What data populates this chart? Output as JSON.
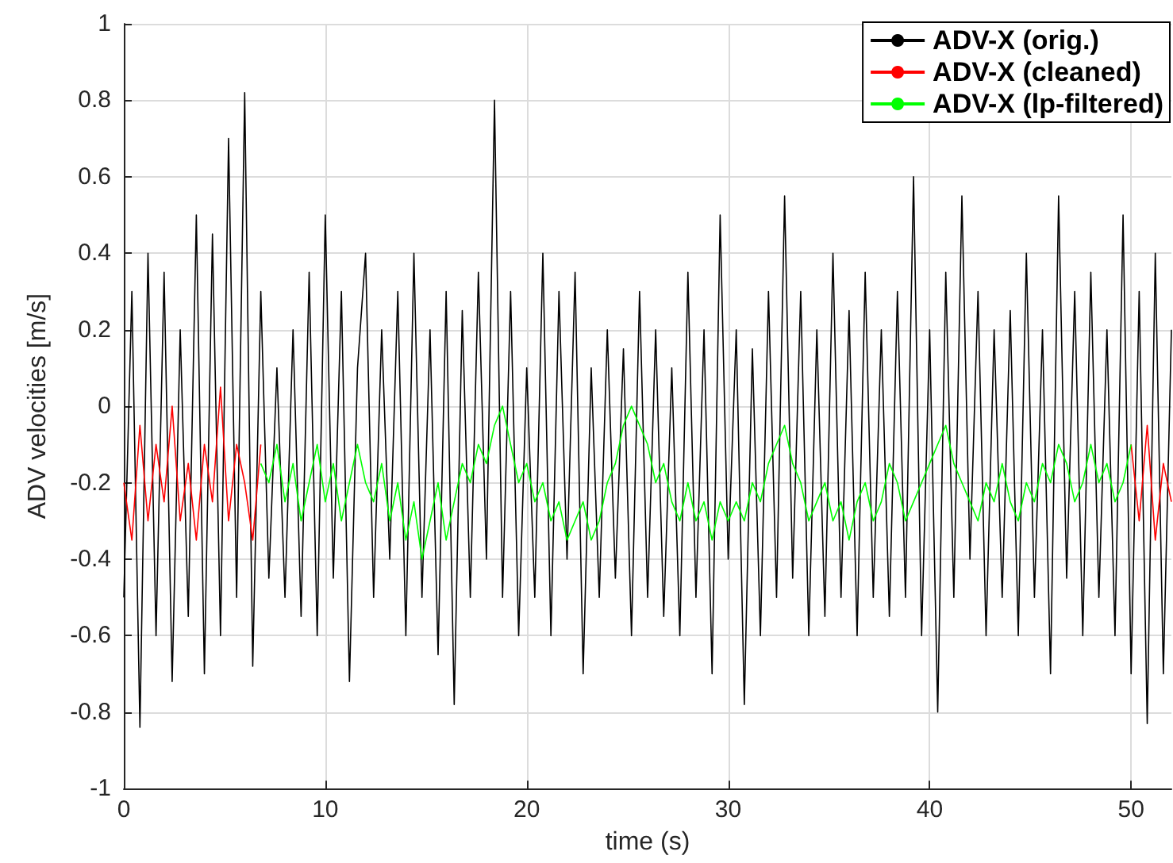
{
  "chart_data": {
    "type": "line",
    "xlabel": "time (s)",
    "ylabel": "ADV velocities [m/s]",
    "x": [
      0,
      0.4,
      0.8,
      1.2,
      1.6,
      2,
      2.4,
      2.8,
      3.2,
      3.6,
      4,
      4.4,
      4.8,
      5.2,
      5.6,
      6,
      6.4,
      6.8,
      7.2,
      7.6,
      8,
      8.4,
      8.8,
      9.2,
      9.6,
      10,
      10.4,
      10.8,
      11.2,
      11.6,
      12,
      12.4,
      12.8,
      13.2,
      13.6,
      14,
      14.4,
      14.8,
      15.2,
      15.6,
      16,
      16.4,
      16.8,
      17.2,
      17.6,
      18,
      18.4,
      18.8,
      19.2,
      19.6,
      20,
      20.4,
      20.8,
      21.2,
      21.6,
      22,
      22.4,
      22.8,
      23.2,
      23.6,
      24,
      24.4,
      24.8,
      25.2,
      25.6,
      26,
      26.4,
      26.8,
      27.2,
      27.6,
      28,
      28.4,
      28.8,
      29.2,
      29.6,
      30,
      30.4,
      30.8,
      31.2,
      31.6,
      32,
      32.4,
      32.8,
      33.2,
      33.6,
      34,
      34.4,
      34.8,
      35.2,
      35.6,
      36,
      36.4,
      36.8,
      37.2,
      37.6,
      38,
      38.4,
      38.8,
      39.2,
      39.6,
      40,
      40.4,
      40.8,
      41.2,
      41.6,
      42,
      42.4,
      42.8,
      43.2,
      43.6,
      44,
      44.4,
      44.8,
      45.2,
      45.6,
      46,
      46.4,
      46.8,
      47.2,
      47.6,
      48,
      48.4,
      48.8,
      49.2,
      49.6,
      50,
      50.4,
      50.8,
      51.2,
      51.6,
      52
    ],
    "series": [
      {
        "name": "ADV-X (orig.)",
        "color": "#000000",
        "values": [
          -0.5,
          0.3,
          -0.84,
          0.4,
          -0.6,
          0.35,
          -0.72,
          0.2,
          -0.55,
          0.5,
          -0.7,
          0.45,
          -0.6,
          0.7,
          -0.5,
          0.82,
          -0.68,
          0.3,
          -0.45,
          0.1,
          -0.5,
          0.2,
          -0.55,
          0.35,
          -0.6,
          0.5,
          -0.45,
          0.3,
          -0.72,
          0.1,
          0.4,
          -0.5,
          0.2,
          -0.4,
          0.3,
          -0.6,
          0.4,
          -0.5,
          0.2,
          -0.65,
          0.3,
          -0.78,
          0.25,
          -0.5,
          0.35,
          -0.4,
          0.8,
          -0.5,
          0.3,
          -0.6,
          0.1,
          -0.5,
          0.4,
          -0.6,
          0.3,
          -0.4,
          0.35,
          -0.7,
          0.1,
          -0.5,
          0.2,
          -0.45,
          0.15,
          -0.6,
          0.3,
          -0.5,
          0.2,
          -0.55,
          0.1,
          -0.6,
          0.35,
          -0.5,
          0.2,
          -0.7,
          0.5,
          -0.4,
          0.2,
          -0.78,
          0.15,
          -0.6,
          0.3,
          -0.5,
          0.55,
          -0.45,
          0.3,
          -0.6,
          0.2,
          -0.55,
          0.4,
          -0.5,
          0.25,
          -0.6,
          0.35,
          -0.5,
          0.2,
          -0.55,
          0.3,
          -0.5,
          0.6,
          -0.6,
          0.2,
          -0.8,
          0.35,
          -0.5,
          0.55,
          -0.4,
          0.3,
          -0.6,
          0.2,
          -0.5,
          0.25,
          -0.6,
          0.4,
          -0.5,
          0.2,
          -0.7,
          0.55,
          -0.45,
          0.3,
          -0.6,
          0.35,
          -0.5,
          0.2,
          -0.6,
          0.5,
          -0.7,
          0.3,
          -0.83,
          0.4,
          -0.7,
          0.2
        ]
      },
      {
        "name": "ADV-X (cleaned)",
        "color": "#ff0000",
        "x": [
          0,
          0.4,
          0.8,
          1.2,
          1.6,
          2,
          2.4,
          2.8,
          3.2,
          3.6,
          4,
          4.4,
          4.8,
          5.2,
          5.6,
          6,
          6.4,
          6.8,
          28,
          50,
          50.4,
          50.8,
          51.2,
          51.6,
          52
        ],
        "values": [
          -0.2,
          -0.35,
          -0.05,
          -0.3,
          -0.1,
          -0.25,
          0.0,
          -0.3,
          -0.15,
          -0.35,
          -0.1,
          -0.25,
          0.05,
          -0.3,
          -0.1,
          -0.2,
          -0.35,
          -0.1,
          null,
          -0.1,
          -0.3,
          -0.05,
          -0.35,
          -0.15,
          -0.25
        ]
      },
      {
        "name": "ADV-X (lp-filtered)",
        "color": "#00ff00",
        "x": [
          6.8,
          7.2,
          7.6,
          8,
          8.4,
          8.8,
          9.2,
          9.6,
          10,
          10.4,
          10.8,
          11.2,
          11.6,
          12,
          12.4,
          12.8,
          13.2,
          13.6,
          14,
          14.4,
          14.8,
          15.2,
          15.6,
          16,
          16.4,
          16.8,
          17.2,
          17.6,
          18,
          18.4,
          18.8,
          19.2,
          19.6,
          20,
          20.4,
          20.8,
          21.2,
          21.6,
          22,
          22.4,
          22.8,
          23.2,
          23.6,
          24,
          24.4,
          24.8,
          25.2,
          25.6,
          26,
          26.4,
          26.8,
          27.2,
          27.6,
          28,
          28.4,
          28.8,
          29.2,
          29.6,
          30,
          30.4,
          30.8,
          31.2,
          31.6,
          32,
          32.4,
          32.8,
          33.2,
          33.6,
          34,
          34.4,
          34.8,
          35.2,
          35.6,
          36,
          36.4,
          36.8,
          37.2,
          37.6,
          38,
          38.4,
          38.8,
          39.2,
          39.6,
          40,
          40.4,
          40.8,
          41.2,
          41.6,
          42,
          42.4,
          42.8,
          43.2,
          43.6,
          44,
          44.4,
          44.8,
          45.2,
          45.6,
          46,
          46.4,
          46.8,
          47.2,
          47.6,
          48,
          48.4,
          48.8,
          49.2,
          49.6,
          50
        ],
        "values": [
          -0.15,
          -0.2,
          -0.1,
          -0.25,
          -0.15,
          -0.3,
          -0.2,
          -0.1,
          -0.25,
          -0.15,
          -0.3,
          -0.2,
          -0.1,
          -0.2,
          -0.25,
          -0.15,
          -0.3,
          -0.2,
          -0.35,
          -0.25,
          -0.4,
          -0.3,
          -0.2,
          -0.35,
          -0.25,
          -0.15,
          -0.2,
          -0.1,
          -0.15,
          -0.05,
          0.0,
          -0.1,
          -0.2,
          -0.15,
          -0.25,
          -0.2,
          -0.3,
          -0.25,
          -0.35,
          -0.3,
          -0.25,
          -0.35,
          -0.3,
          -0.2,
          -0.15,
          -0.05,
          0.0,
          -0.05,
          -0.1,
          -0.2,
          -0.15,
          -0.25,
          -0.3,
          -0.2,
          -0.3,
          -0.25,
          -0.35,
          -0.25,
          -0.3,
          -0.25,
          -0.3,
          -0.2,
          -0.25,
          -0.15,
          -0.1,
          -0.05,
          -0.15,
          -0.2,
          -0.3,
          -0.25,
          -0.2,
          -0.3,
          -0.25,
          -0.35,
          -0.25,
          -0.2,
          -0.3,
          -0.25,
          -0.15,
          -0.2,
          -0.3,
          -0.25,
          -0.2,
          -0.15,
          -0.1,
          -0.05,
          -0.15,
          -0.2,
          -0.25,
          -0.3,
          -0.2,
          -0.25,
          -0.15,
          -0.25,
          -0.3,
          -0.2,
          -0.25,
          -0.15,
          -0.2,
          -0.1,
          -0.15,
          -0.25,
          -0.2,
          -0.1,
          -0.2,
          -0.15,
          -0.25,
          -0.2,
          -0.1
        ]
      }
    ],
    "xlim": [
      0,
      52
    ],
    "xticks": [
      0,
      10,
      20,
      30,
      40,
      50
    ],
    "ylim": [
      -1,
      1
    ],
    "yticks": [
      -1,
      -0.8,
      -0.6,
      -0.4,
      -0.2,
      0,
      0.2,
      0.4,
      0.6,
      0.8,
      1
    ],
    "grid": true,
    "legend": "top right",
    "marker": "none",
    "line_style": "solid"
  }
}
